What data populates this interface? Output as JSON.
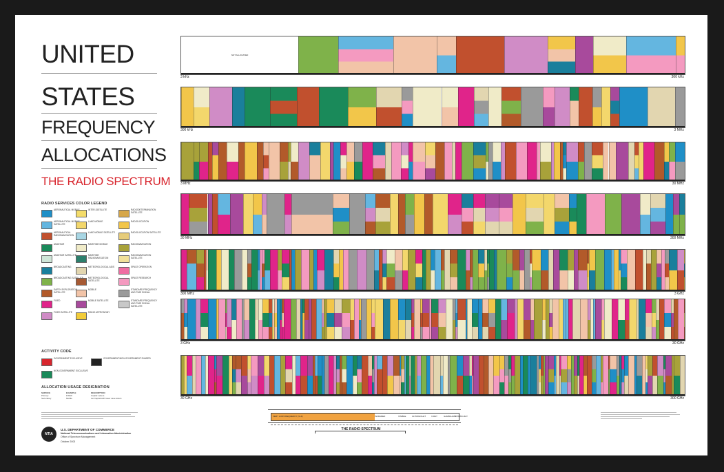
{
  "title_lines": [
    "UNITED",
    "STATES",
    "FREQUENCY",
    "ALLOCATIONS"
  ],
  "subtitle": "THE RADIO SPECTRUM",
  "legend": {
    "heading": "RADIO SERVICES COLOR LEGEND",
    "items": [
      {
        "label": "AERONAUTICAL MOBILE",
        "color": "#1f8fc7"
      },
      {
        "label": "AERONAUTICAL MOBILE SATELLITE",
        "color": "#64b6e0"
      },
      {
        "label": "AERONAUTICAL RADIONAVIGATION",
        "color": "#c1502e"
      },
      {
        "label": "AMATEUR",
        "color": "#1a8a5a"
      },
      {
        "label": "AMATEUR SATELLITE",
        "color": "#cfe6d8"
      },
      {
        "label": "BROADCASTING",
        "color": "#1a7f9c"
      },
      {
        "label": "BROADCASTING SATELLITE",
        "color": "#7fb24a"
      },
      {
        "label": "EARTH EXPLORATION SATELLITE",
        "color": "#b25a2a"
      },
      {
        "label": "FIXED",
        "color": "#e0248a"
      },
      {
        "label": "FIXED SATELLITE",
        "color": "#d08cc6"
      },
      {
        "label": "INTER-SATELLITE",
        "color": "#f4dc6a"
      },
      {
        "label": "LAND MOBILE",
        "color": "#f3d76c"
      },
      {
        "label": "LAND MOBILE SATELLITE",
        "color": "#a8d6e4"
      },
      {
        "label": "MARITIME MOBILE",
        "color": "#f0ebc8"
      },
      {
        "label": "MARITIME RADIONAVIGATION",
        "color": "#2c7f6c"
      },
      {
        "label": "METEOROLOGICAL AIDS",
        "color": "#e2d6b0"
      },
      {
        "label": "METEOROLOGICAL SATELLITE",
        "color": "#a65a34"
      },
      {
        "label": "MOBILE",
        "color": "#f2c4a8"
      },
      {
        "label": "MOBILE SATELLITE",
        "color": "#a84a9c"
      },
      {
        "label": "RADIO ASTRONOMY",
        "color": "#f2cc3a"
      },
      {
        "label": "RADIODETERMINATION SATELLITE",
        "color": "#d6a74a"
      },
      {
        "label": "RADIOLOCATION",
        "color": "#f2c64a"
      },
      {
        "label": "RADIOLOCATION SATELLITE",
        "color": "#e6cc7a"
      },
      {
        "label": "RADIONAVIGATION",
        "color": "#a8a23a"
      },
      {
        "label": "RADIONAVIGATION SATELLITE",
        "color": "#f0e09a"
      },
      {
        "label": "SPACE OPERATION",
        "color": "#ef6da2"
      },
      {
        "label": "SPACE RESEARCH",
        "color": "#f49ac0"
      },
      {
        "label": "STANDARD FREQUENCY AND TIME SIGNAL",
        "color": "#9a9a9a"
      },
      {
        "label": "STANDARD FREQUENCY AND TIME SIGNAL SATELLITE",
        "color": "#c8c8c8"
      }
    ]
  },
  "activity": {
    "heading": "ACTIVITY CODE",
    "items": [
      {
        "label": "GOVERNMENT EXCLUSIVE",
        "color": "#d8262e"
      },
      {
        "label": "GOVERNMENT/NON-GOVERNMENT SHARED",
        "color": "#222222"
      },
      {
        "label": "NON-GOVERNMENT EXCLUSIVE",
        "color": "#1a8a5a"
      }
    ]
  },
  "usage": {
    "heading": "ALLOCATION USAGE DESIGNATION",
    "columns": [
      "SERVICE",
      "EXAMPLE",
      "DESCRIPTION"
    ],
    "rows": [
      [
        "Primary",
        "FIXED",
        "Capital Letters"
      ],
      [
        "Secondary",
        "Mobile",
        "1st Capital with lower case letters"
      ]
    ]
  },
  "footer": {
    "agency": "U.S. DEPARTMENT OF COMMERCE",
    "subagency": "National Telecommunications and Information Administration",
    "office": "Office of Spectrum Management",
    "date": "October 2003",
    "logo_text": "NTIA"
  },
  "bands": [
    {
      "start": "3 kHz",
      "end": "300 kHz",
      "big_label": "NOT ALLOCATED"
    },
    {
      "start": "300 kHz",
      "end": "3 MHz",
      "big_label": ""
    },
    {
      "start": "3 MHz",
      "end": "30 MHz",
      "big_label": ""
    },
    {
      "start": "30 MHz",
      "end": "300 MHz",
      "big_label": ""
    },
    {
      "start": "300 MHz",
      "end": "3 GHz",
      "big_label": ""
    },
    {
      "start": "3 GHz",
      "end": "30 GHz",
      "big_label": ""
    },
    {
      "start": "30 GHz",
      "end": "300 GHz",
      "big_label": ""
    }
  ],
  "spectrum_chart": {
    "title": "THE RADIO SPECTRUM",
    "regions": [
      "VERY LOW FREQUENCY (VLF)",
      "INFRARED",
      "VISIBLE",
      "ULTRAVIOLET",
      "X-RAY",
      "GAMMA-RAY",
      "COSMIC-RAY"
    ]
  },
  "colors": {
    "palette": [
      "#e0248a",
      "#1f8fc7",
      "#f3d76c",
      "#1a7f9c",
      "#f0ebc8",
      "#d08cc6",
      "#a84a9c",
      "#f2c64a",
      "#c1502e",
      "#1a8a5a",
      "#9a9a9a",
      "#7fb24a",
      "#f49ac0",
      "#a8a23a",
      "#f2c4a8",
      "#64b6e0",
      "#b25a2a",
      "#e2d6b0"
    ]
  }
}
